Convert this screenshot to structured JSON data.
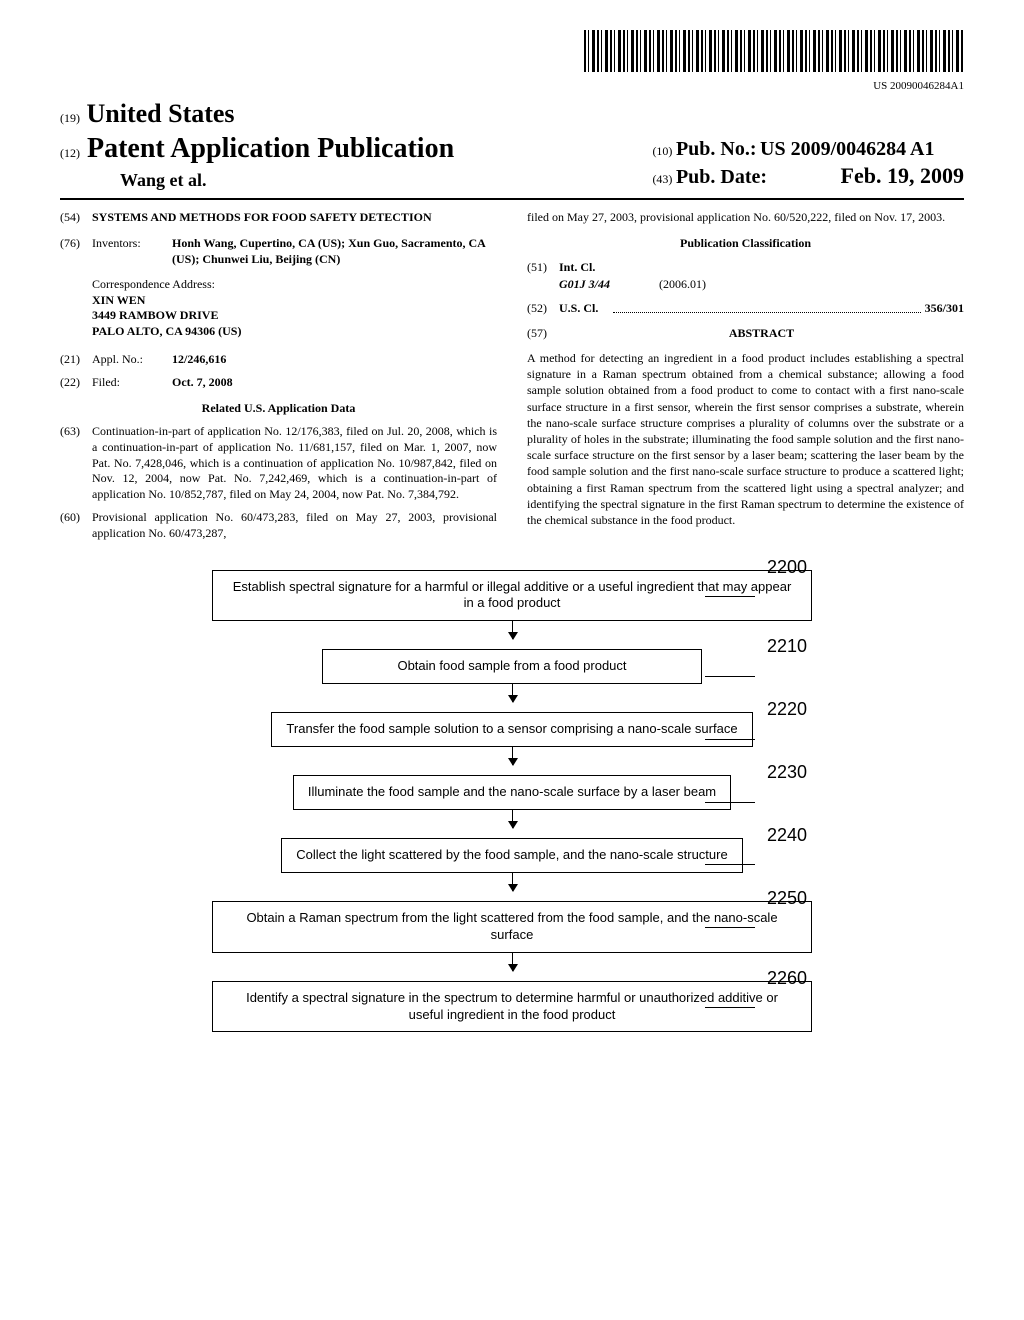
{
  "barcode_text": "US 20090046284A1",
  "header": {
    "country_code": "(19)",
    "country": "United States",
    "pub_type_code": "(12)",
    "pub_type": "Patent Application Publication",
    "authors": "Wang et al.",
    "pubno_code": "(10)",
    "pubno_label": "Pub. No.:",
    "pubno": "US 2009/0046284 A1",
    "pubdate_code": "(43)",
    "pubdate_label": "Pub. Date:",
    "pubdate": "Feb. 19, 2009"
  },
  "left": {
    "title_code": "(54)",
    "title": "SYSTEMS AND METHODS FOR FOOD SAFETY DETECTION",
    "inventors_code": "(76)",
    "inventors_label": "Inventors:",
    "inventors": "Honh Wang, Cupertino, CA (US); Xun Guo, Sacramento, CA (US); Chunwei Liu, Beijing (CN)",
    "corr_label": "Correspondence Address:",
    "corr_1": "XIN WEN",
    "corr_2": "3449 RAMBOW DRIVE",
    "corr_3": "PALO ALTO, CA 94306 (US)",
    "appl_code": "(21)",
    "appl_label": "Appl. No.:",
    "appl_no": "12/246,616",
    "filed_code": "(22)",
    "filed_label": "Filed:",
    "filed": "Oct. 7, 2008",
    "related_title": "Related U.S. Application Data",
    "cip_code": "(63)",
    "cip_text": "Continuation-in-part of application No. 12/176,383, filed on Jul. 20, 2008, which is a continuation-in-part of application No. 11/681,157, filed on Mar. 1, 2007, now Pat. No. 7,428,046, which is a continuation of application No. 10/987,842, filed on Nov. 12, 2004, now Pat. No. 7,242,469, which is a continuation-in-part of application No. 10/852,787, filed on May 24, 2004, now Pat. No. 7,384,792.",
    "prov_code": "(60)",
    "prov_text": "Provisional application No. 60/473,283, filed on May 27, 2003, provisional application No. 60/473,287,"
  },
  "right": {
    "prov_cont": "filed on May 27, 2003, provisional application No. 60/520,222, filed on Nov. 17, 2003.",
    "class_title": "Publication Classification",
    "intcl_code": "(51)",
    "intcl_label": "Int. Cl.",
    "intcl_sym": "G01J 3/44",
    "intcl_date": "(2006.01)",
    "uscl_code": "(52)",
    "uscl_label": "U.S. Cl.",
    "uscl_val": "356/301",
    "abstract_code": "(57)",
    "abstract_label": "ABSTRACT",
    "abstract_text": "A method for detecting an ingredient in a food product includes establishing a spectral signature in a Raman spectrum obtained from a chemical substance; allowing a food sample solution obtained from a food product to come to contact with a first nano-scale surface structure in a first sensor, wherein the first sensor comprises a substrate, wherein the nano-scale surface structure comprises a plurality of columns over the substrate or a plurality of holes in the substrate; illuminating the food sample solution and the first nano-scale surface structure on the first sensor by a laser beam; scattering the laser beam by the food sample solution and the first nano-scale surface structure to produce a scattered light; obtaining a first Raman spectrum from the scattered light using a spectral analyzer; and identifying the spectral signature in the first Raman spectrum to determine the existence of the chemical substance in the food product."
  },
  "flowchart": {
    "steps": [
      {
        "label": "2200",
        "text": "Establish spectral signature for a harmful or illegal additive or a useful ingredient that may appear in a food product"
      },
      {
        "label": "2210",
        "text": "Obtain food sample from a food product"
      },
      {
        "label": "2220",
        "text": "Transfer the food sample solution to a sensor comprising a nano-scale surface"
      },
      {
        "label": "2230",
        "text": "Illuminate the food sample and the nano-scale surface by a laser beam"
      },
      {
        "label": "2240",
        "text": "Collect the light scattered by the food sample, and the nano-scale structure"
      },
      {
        "label": "2250",
        "text": "Obtain a Raman spectrum from the light scattered from the food sample, and the nano-scale surface"
      },
      {
        "label": "2260",
        "text": "Identify a spectral signature in the spectrum to determine harmful or unauthorized additive or useful ingredient in the food product"
      }
    ]
  }
}
